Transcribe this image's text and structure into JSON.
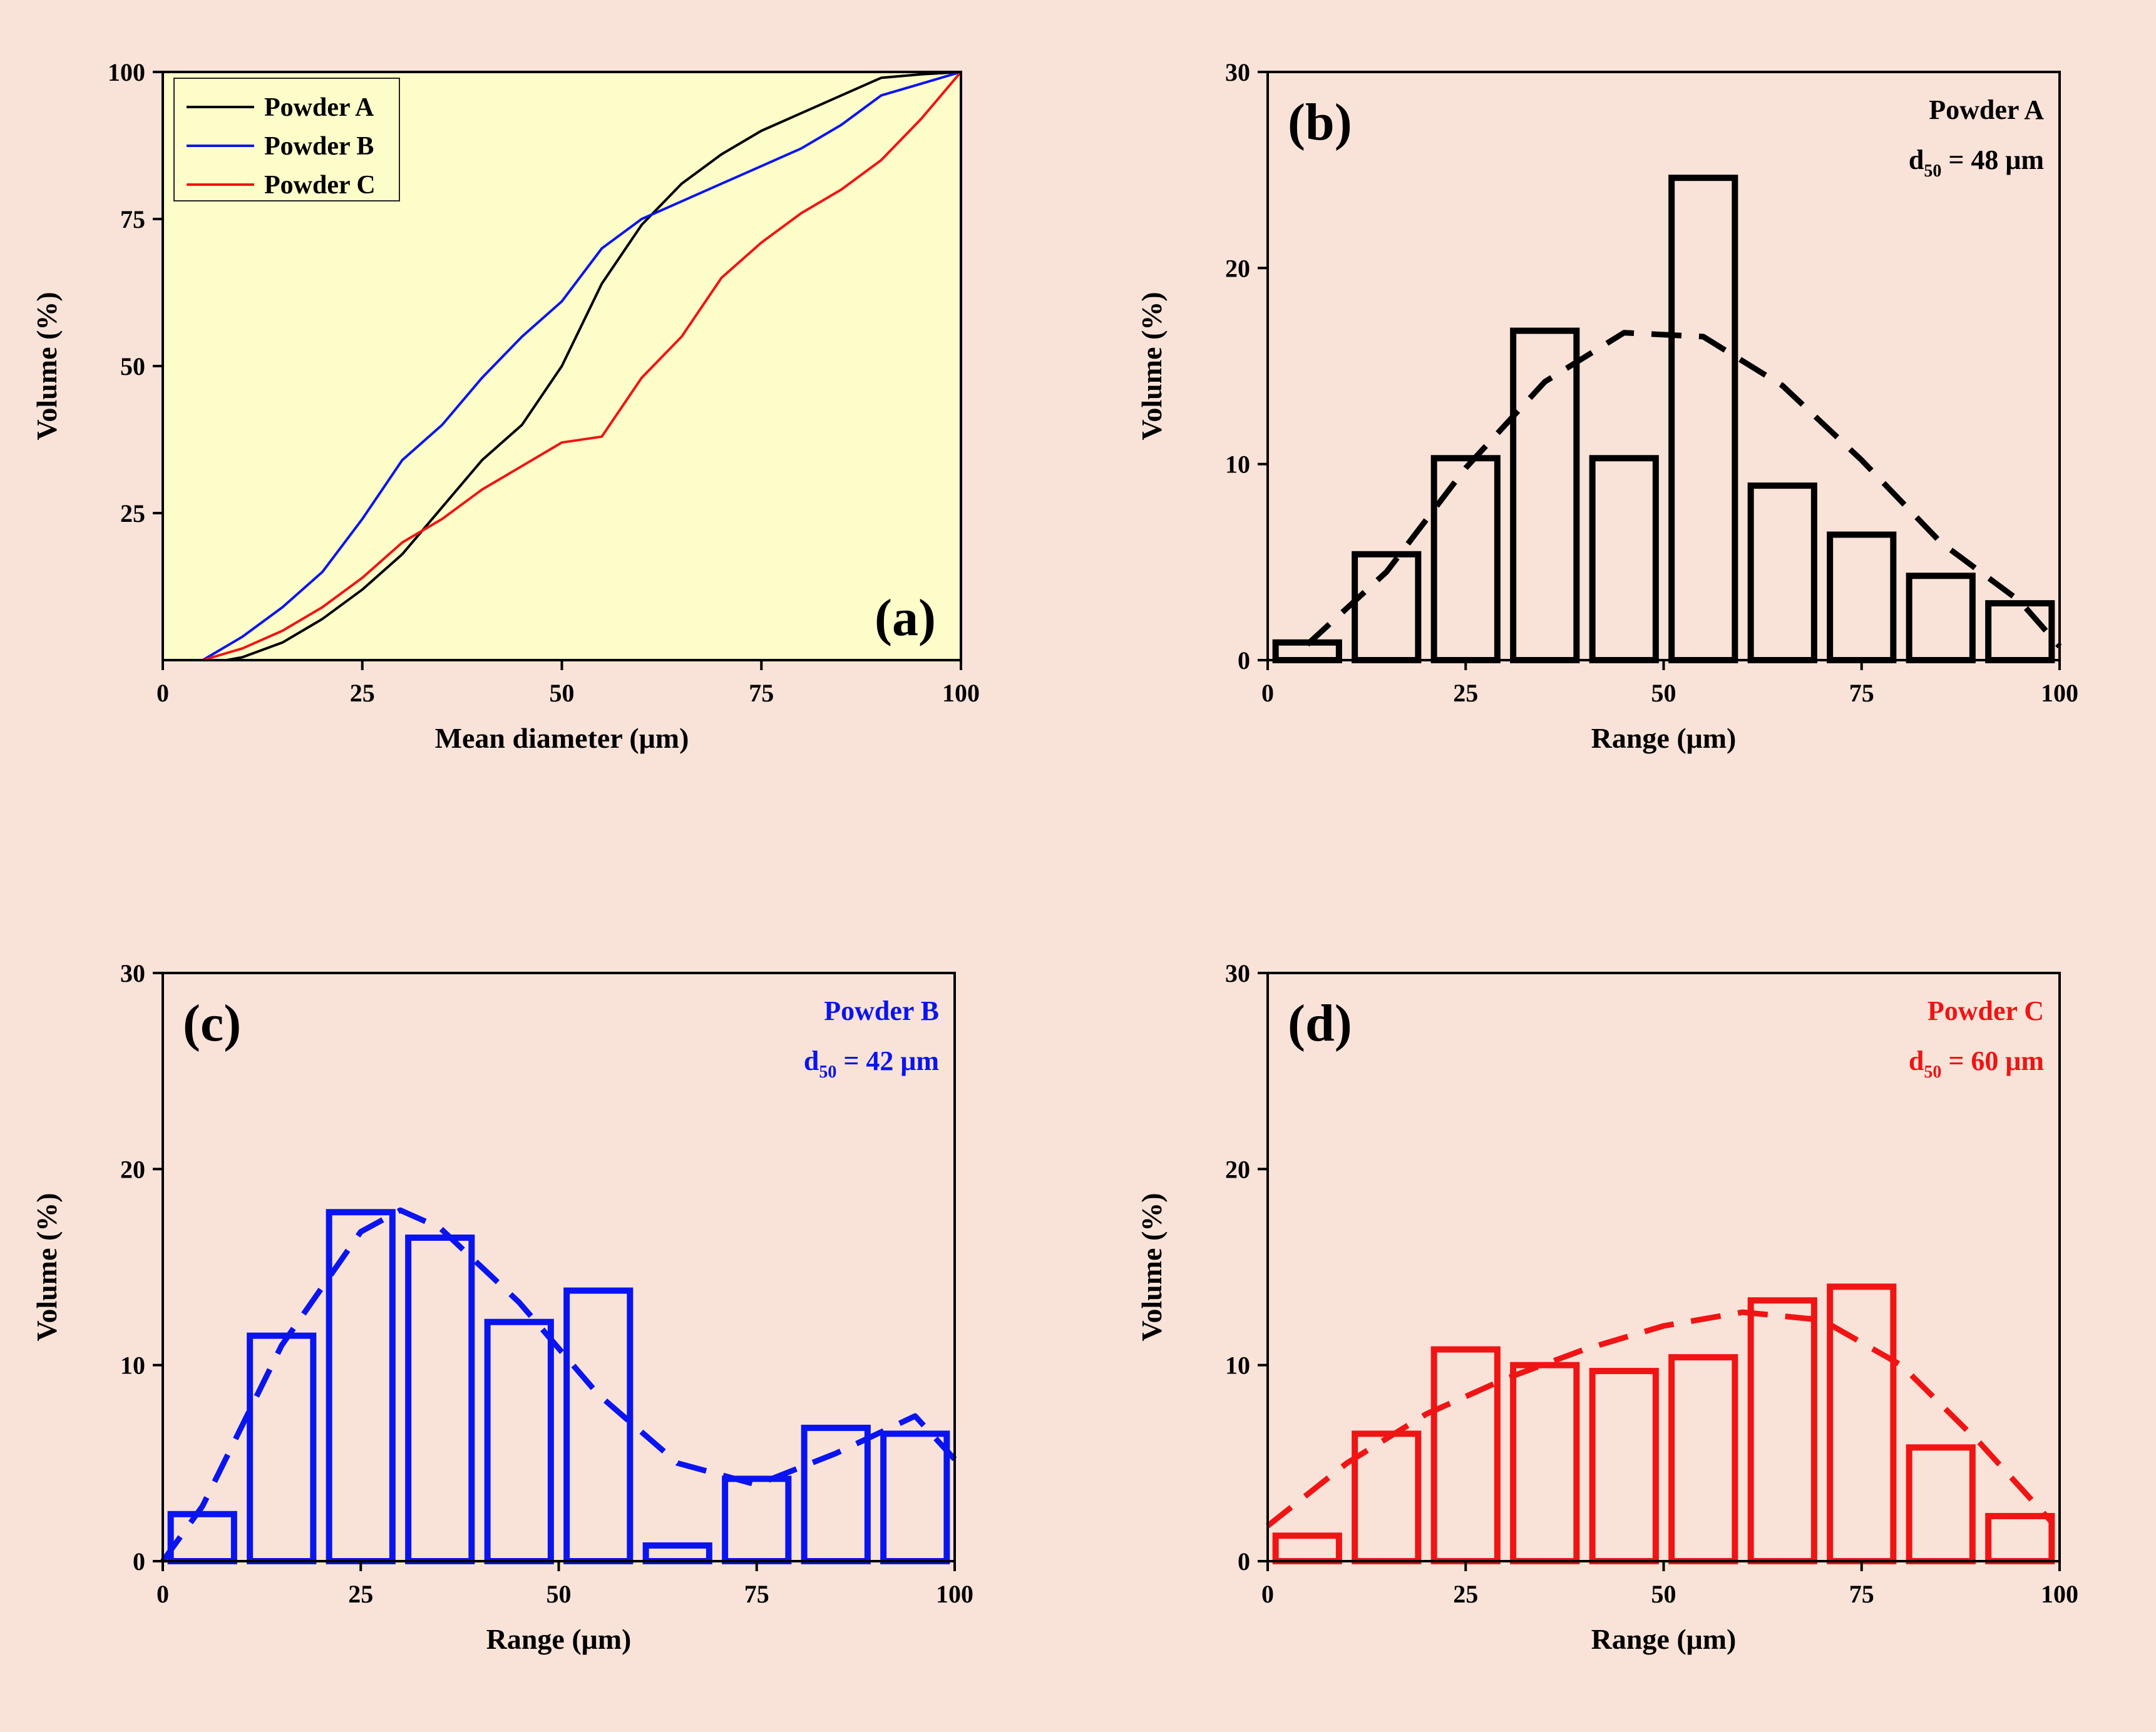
{
  "colors": {
    "page_background": "#f9e3d8",
    "plot_a_background": "#fdfdc9",
    "black": "#000000",
    "blue": "#0a14f0",
    "red": "#f01414"
  },
  "chart_data": [
    {
      "id": "a",
      "type": "line",
      "panel_label": "(a)",
      "xlabel": "Mean diameter (μm)",
      "ylabel": "Volume (%)",
      "xlim": [
        0,
        100
      ],
      "ylim": [
        0,
        100
      ],
      "xticks": [
        0,
        25,
        50,
        75,
        100
      ],
      "yticks": [
        25,
        50,
        75,
        100
      ],
      "legend": {
        "position": "top-left",
        "entries": [
          "Powder A",
          "Powder B",
          "Powder C"
        ]
      },
      "series": [
        {
          "name": "Powder A",
          "color": "#000000",
          "x": [
            8,
            10,
            15,
            20,
            25,
            30,
            35,
            40,
            45,
            50,
            55,
            60,
            65,
            70,
            75,
            80,
            85,
            90,
            95,
            100
          ],
          "y": [
            0,
            0.5,
            3,
            7,
            12,
            18,
            26,
            34,
            40,
            50,
            64,
            74,
            81,
            86,
            90,
            93,
            96,
            99,
            99.6,
            100
          ]
        },
        {
          "name": "Powder B",
          "color": "#0a14f0",
          "x": [
            5,
            10,
            15,
            20,
            25,
            30,
            35,
            40,
            45,
            50,
            55,
            60,
            65,
            70,
            75,
            80,
            85,
            90,
            95,
            100
          ],
          "y": [
            0,
            4,
            9,
            15,
            24,
            34,
            40,
            48,
            55,
            61,
            70,
            75,
            78,
            81,
            84,
            87,
            91,
            96,
            98,
            100
          ]
        },
        {
          "name": "Powder C",
          "color": "#f01414",
          "x": [
            5,
            10,
            15,
            20,
            25,
            30,
            35,
            40,
            45,
            50,
            55,
            60,
            65,
            70,
            75,
            80,
            85,
            90,
            95,
            100
          ],
          "y": [
            0,
            2,
            5,
            9,
            14,
            20,
            24,
            29,
            33,
            37,
            38,
            48,
            55,
            65,
            71,
            76,
            80,
            85,
            92,
            100
          ]
        }
      ]
    },
    {
      "id": "b",
      "type": "bar",
      "panel_label": "(b)",
      "xlabel": "Range (μm)",
      "ylabel": "Volume (%)",
      "xlim": [
        0,
        100
      ],
      "ylim": [
        0,
        30
      ],
      "xticks": [
        0,
        25,
        50,
        75,
        100
      ],
      "yticks": [
        0,
        10,
        20,
        30
      ],
      "series_name": "Powder A",
      "annotation": {
        "name": "Powder A",
        "d_main": "d",
        "d_sub": "50",
        "d_value": " = 48 μm"
      },
      "color": "#000000",
      "bins": [
        [
          1,
          9
        ],
        [
          11,
          19
        ],
        [
          21,
          29
        ],
        [
          31,
          39
        ],
        [
          41,
          49
        ],
        [
          51,
          59
        ],
        [
          61,
          69
        ],
        [
          71,
          79
        ],
        [
          81,
          89
        ],
        [
          91,
          99
        ]
      ],
      "values": [
        0.9,
        5.4,
        10.3,
        16.8,
        10.3,
        24.6,
        8.9,
        6.4,
        4.3,
        2.9
      ],
      "fit": {
        "x": [
          5,
          15,
          25,
          35,
          45,
          55,
          65,
          75,
          85,
          95,
          100
        ],
        "y": [
          0.8,
          4.5,
          9.8,
          14.2,
          16.7,
          16.5,
          14.0,
          10.2,
          6.0,
          3.0,
          0.7
        ]
      }
    },
    {
      "id": "c",
      "type": "bar",
      "panel_label": "(c)",
      "xlabel": "Range (μm)",
      "ylabel": "Volume (%)",
      "xlim": [
        0,
        100
      ],
      "ylim": [
        0,
        30
      ],
      "xticks": [
        0,
        25,
        50,
        75,
        100
      ],
      "yticks": [
        0,
        10,
        20,
        30
      ],
      "series_name": "Powder B",
      "annotation": {
        "name": "Powder B",
        "d_main": "d",
        "d_sub": "50",
        "d_value": " = 42 μm"
      },
      "color": "#0a14f0",
      "bins": [
        [
          1,
          9
        ],
        [
          11,
          19
        ],
        [
          21,
          29
        ],
        [
          31,
          39
        ],
        [
          41,
          49
        ],
        [
          51,
          59
        ],
        [
          61,
          69
        ],
        [
          71,
          79
        ],
        [
          81,
          89
        ],
        [
          91,
          99
        ]
      ],
      "values": [
        2.4,
        11.5,
        17.8,
        16.5,
        12.2,
        13.8,
        0.8,
        4.2,
        6.8,
        6.5
      ],
      "fit": {
        "x": [
          0,
          5,
          15,
          25,
          30,
          35,
          45,
          55,
          65,
          75,
          85,
          95,
          100
        ],
        "y": [
          0,
          2.8,
          11.0,
          16.8,
          17.9,
          17.0,
          13.2,
          8.5,
          5.0,
          3.9,
          5.5,
          7.4,
          5.2
        ]
      }
    },
    {
      "id": "d",
      "type": "bar",
      "panel_label": "(d)",
      "xlabel": "Range (μm)",
      "ylabel": "Volume (%)",
      "xlim": [
        0,
        100
      ],
      "ylim": [
        0,
        30
      ],
      "xticks": [
        0,
        25,
        50,
        75,
        100
      ],
      "yticks": [
        0,
        10,
        20,
        30
      ],
      "series_name": "Powder C",
      "annotation": {
        "name": "Powder C",
        "d_main": "d",
        "d_sub": "50",
        "d_value": " = 60 μm"
      },
      "color": "#f01414",
      "bins": [
        [
          1,
          9
        ],
        [
          11,
          19
        ],
        [
          21,
          29
        ],
        [
          31,
          39
        ],
        [
          41,
          49
        ],
        [
          51,
          59
        ],
        [
          61,
          69
        ],
        [
          71,
          79
        ],
        [
          81,
          89
        ],
        [
          91,
          99
        ]
      ],
      "values": [
        1.3,
        6.5,
        10.8,
        10.0,
        9.7,
        10.4,
        13.3,
        14.0,
        5.8,
        2.3
      ],
      "fit": {
        "x": [
          0,
          10,
          20,
          30,
          40,
          50,
          60,
          70,
          80,
          90,
          99
        ],
        "y": [
          1.8,
          5.0,
          7.5,
          9.3,
          10.8,
          12.0,
          12.7,
          12.3,
          10.0,
          6.0,
          2.0
        ]
      }
    }
  ]
}
